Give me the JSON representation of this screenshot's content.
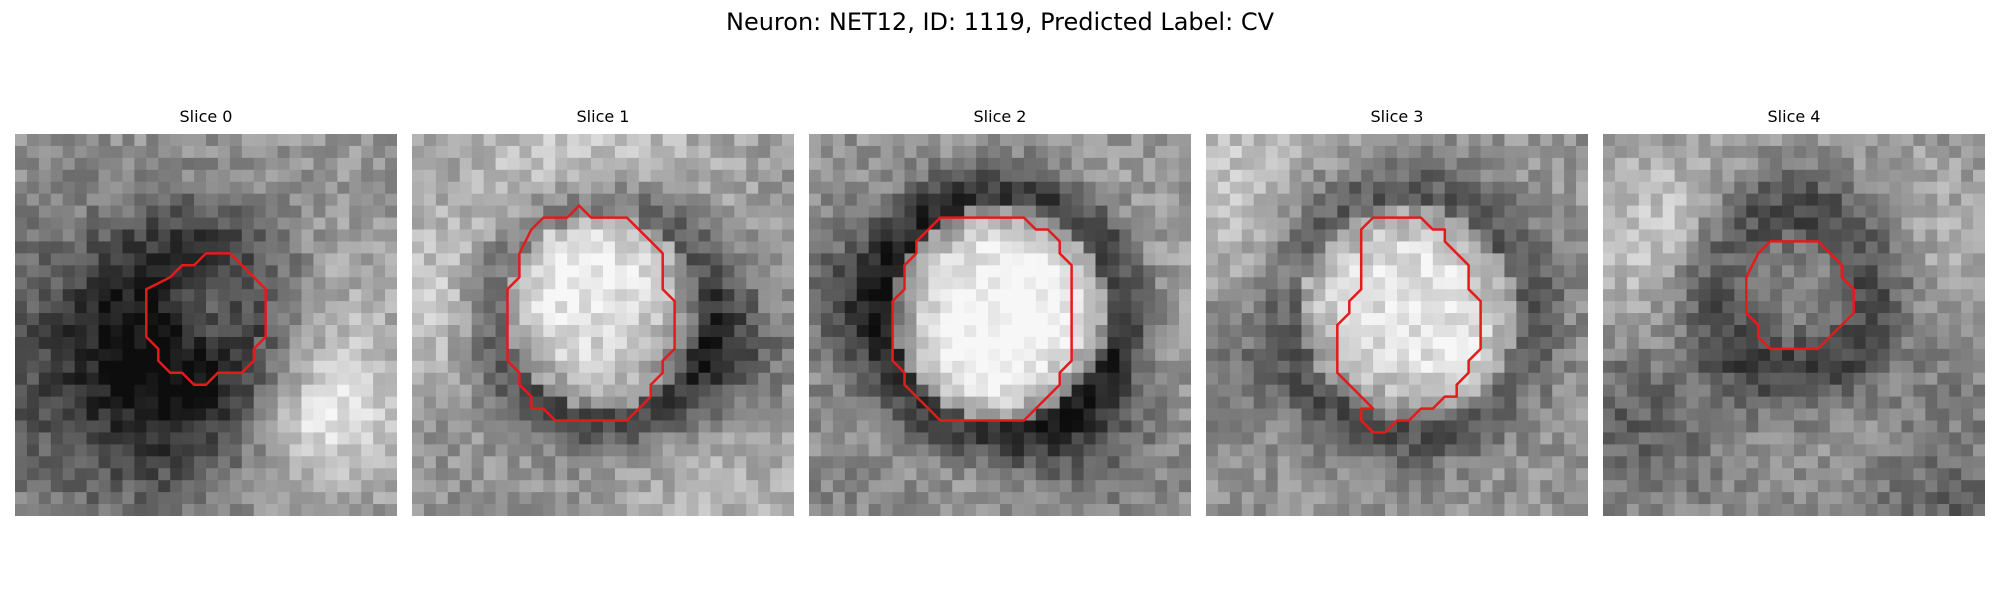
{
  "figure": {
    "title": "Neuron: NET12, ID: 1119, Predicted Label: CV",
    "outline_color": "#e41a1c",
    "colormap": "grayscale"
  },
  "slices": [
    {
      "title": "Slice 0",
      "image": "grayscale-em-patch"
    },
    {
      "title": "Slice 1",
      "image": "grayscale-em-patch"
    },
    {
      "title": "Slice 2",
      "image": "grayscale-em-patch"
    },
    {
      "title": "Slice 3",
      "image": "grayscale-em-patch"
    },
    {
      "title": "Slice 4",
      "image": "grayscale-em-patch"
    }
  ]
}
